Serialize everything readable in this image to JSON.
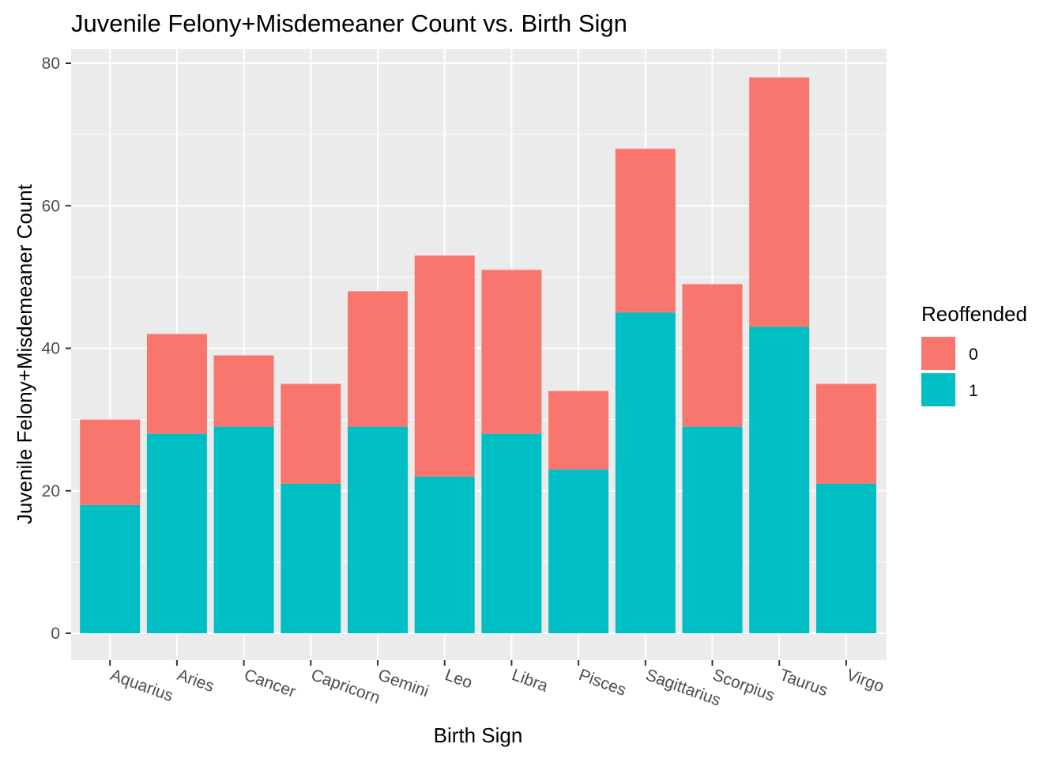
{
  "chart_data": {
    "type": "bar",
    "stacked": true,
    "title": "Juvenile Felony+Misdemeaner Count vs. Birth Sign",
    "xlabel": "Birth Sign",
    "ylabel": "Juvenile Felony+Misdemeaner Count",
    "ylim": [
      0,
      80
    ],
    "yticks": [
      "0",
      "20",
      "40",
      "60",
      "80"
    ],
    "grid": true,
    "legend_position": "right",
    "legend_title": "Reoffended",
    "categories": [
      "Aquarius",
      "Aries",
      "Cancer",
      "Capricorn",
      "Gemini",
      "Leo",
      "Libra",
      "Pisces",
      "Sagittarius",
      "Scorpius",
      "Taurus",
      "Virgo"
    ],
    "series": [
      {
        "name": "0",
        "color": "#F8766D",
        "values": [
          12,
          14,
          10,
          14,
          19,
          31,
          23,
          11,
          23,
          20,
          35,
          14
        ]
      },
      {
        "name": "1",
        "color": "#00BFC4",
        "values": [
          18,
          28,
          29,
          21,
          29,
          22,
          28,
          23,
          45,
          29,
          43,
          21
        ]
      }
    ],
    "panel_background": "#EBEBEB",
    "grid_color": "#FFFFFF"
  }
}
